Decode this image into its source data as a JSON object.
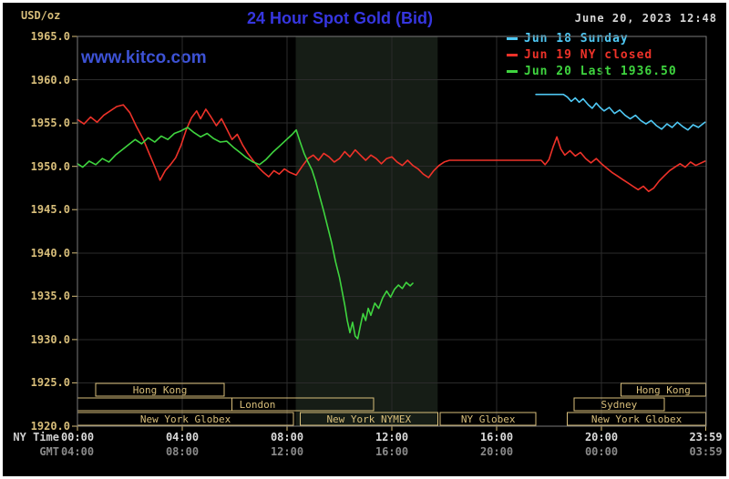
{
  "header": {
    "unit_label": "USD/oz",
    "title": "24 Hour Spot Gold (Bid)",
    "datetime": "June 20, 2023 12:48",
    "watermark": "www.kitco.com"
  },
  "axes": {
    "ny_time_label": "NY Time",
    "gmt_label": "GMT"
  },
  "colors": {
    "page_bg": "#ffffff",
    "chart_bg": "#000000",
    "tan": "#d8be7a",
    "title_blue": "#3636e0",
    "watermark_blue": "#3d52d5",
    "datetime_text": "#d8d8d8",
    "ny_tick_text": "#dcdcdc",
    "gmt_tick_text": "#8a8a8a",
    "grid": "#2b2b2b",
    "frame": "#7a7a7a",
    "band": "#161d16"
  },
  "legend": {
    "position": "top-right",
    "items": [
      {
        "label": "Jun 18 Sunday",
        "color": "#4fc8f4"
      },
      {
        "label": "Jun 19 NY closed",
        "color": "#ee3229"
      },
      {
        "label": "Jun 20 Last 1936.50",
        "color": "#3fd53f"
      }
    ]
  },
  "chart_data": {
    "type": "line",
    "title": "24 Hour Spot Gold (Bid)",
    "ylabel": "USD/oz",
    "xlabel": "NY Time / GMT",
    "ylim": [
      1920,
      1965
    ],
    "yticks": [
      1965,
      1960,
      1955,
      1950,
      1945,
      1940,
      1935,
      1930,
      1925,
      1920
    ],
    "grid": true,
    "x_hours_range": [
      0,
      24
    ],
    "x_grid_hours": [
      4,
      8,
      12,
      16,
      20
    ],
    "x_ticks": [
      {
        "hour": 0,
        "ny": "00:00",
        "gmt": "04:00"
      },
      {
        "hour": 4,
        "ny": "04:00",
        "gmt": "08:00"
      },
      {
        "hour": 8,
        "ny": "08:00",
        "gmt": "12:00"
      },
      {
        "hour": 12,
        "ny": "12:00",
        "gmt": "16:00"
      },
      {
        "hour": 16,
        "ny": "16:00",
        "gmt": "20:00"
      },
      {
        "hour": 20,
        "ny": "20:00",
        "gmt": "00:00"
      },
      {
        "hour": 23.983,
        "ny": "23:59",
        "gmt": "03:59"
      }
    ],
    "shaded_band_hours": [
      8.33,
      13.75
    ],
    "sessions": [
      {
        "row": 0,
        "start": 0.7,
        "end": 5.6,
        "label": "Hong Kong"
      },
      {
        "row": 0,
        "start": 20.75,
        "end": 23.983,
        "label": "Hong Kong"
      },
      {
        "row": 1,
        "start": 0,
        "end": 5.9,
        "label": ""
      },
      {
        "row": 1,
        "start": 5.9,
        "end": 11.3,
        "label": "London",
        "align": "left"
      },
      {
        "row": 1,
        "start": 18.95,
        "end": 22.4,
        "label": "Sydney"
      },
      {
        "row": 2,
        "start": 0,
        "end": 8.25,
        "label": "New York Globex"
      },
      {
        "row": 2,
        "start": 8.5,
        "end": 13.75,
        "label": "New York NYMEX"
      },
      {
        "row": 2,
        "start": 13.85,
        "end": 17.5,
        "label": "NY Globex"
      },
      {
        "row": 2,
        "start": 18.7,
        "end": 23.983,
        "label": "New York Globex"
      }
    ],
    "series": [
      {
        "name": "Jun 18 Sunday",
        "color": "#4fc8f4",
        "points": [
          [
            17.5,
            1958.3
          ],
          [
            18.55,
            1958.3
          ],
          [
            18.7,
            1958.0
          ],
          [
            18.85,
            1957.5
          ],
          [
            19.0,
            1957.9
          ],
          [
            19.15,
            1957.4
          ],
          [
            19.3,
            1957.8
          ],
          [
            19.5,
            1957.1
          ],
          [
            19.65,
            1956.7
          ],
          [
            19.8,
            1957.3
          ],
          [
            19.95,
            1956.8
          ],
          [
            20.1,
            1956.4
          ],
          [
            20.3,
            1956.8
          ],
          [
            20.5,
            1956.1
          ],
          [
            20.7,
            1956.5
          ],
          [
            20.9,
            1955.9
          ],
          [
            21.1,
            1955.5
          ],
          [
            21.3,
            1955.9
          ],
          [
            21.5,
            1955.3
          ],
          [
            21.7,
            1954.9
          ],
          [
            21.9,
            1955.3
          ],
          [
            22.1,
            1954.7
          ],
          [
            22.3,
            1954.3
          ],
          [
            22.5,
            1954.9
          ],
          [
            22.7,
            1954.5
          ],
          [
            22.9,
            1955.1
          ],
          [
            23.1,
            1954.6
          ],
          [
            23.3,
            1954.2
          ],
          [
            23.5,
            1954.8
          ],
          [
            23.7,
            1954.5
          ],
          [
            23.95,
            1955.1
          ]
        ]
      },
      {
        "name": "Jun 19 NY closed",
        "color": "#ee3229",
        "points": [
          [
            0.0,
            1955.4
          ],
          [
            0.25,
            1954.9
          ],
          [
            0.5,
            1955.7
          ],
          [
            0.75,
            1955.1
          ],
          [
            1.0,
            1955.9
          ],
          [
            1.25,
            1956.4
          ],
          [
            1.5,
            1956.9
          ],
          [
            1.75,
            1957.1
          ],
          [
            2.0,
            1956.2
          ],
          [
            2.25,
            1954.6
          ],
          [
            2.5,
            1953.2
          ],
          [
            2.75,
            1951.4
          ],
          [
            3.0,
            1949.6
          ],
          [
            3.15,
            1948.4
          ],
          [
            3.35,
            1949.5
          ],
          [
            3.55,
            1950.2
          ],
          [
            3.75,
            1951.0
          ],
          [
            3.95,
            1952.4
          ],
          [
            4.15,
            1954.2
          ],
          [
            4.35,
            1955.6
          ],
          [
            4.55,
            1956.4
          ],
          [
            4.7,
            1955.5
          ],
          [
            4.9,
            1956.6
          ],
          [
            5.1,
            1955.7
          ],
          [
            5.3,
            1954.7
          ],
          [
            5.5,
            1955.5
          ],
          [
            5.7,
            1954.3
          ],
          [
            5.9,
            1953.1
          ],
          [
            6.1,
            1953.7
          ],
          [
            6.3,
            1952.5
          ],
          [
            6.5,
            1951.5
          ],
          [
            6.7,
            1950.7
          ],
          [
            6.9,
            1949.9
          ],
          [
            7.1,
            1949.3
          ],
          [
            7.3,
            1948.8
          ],
          [
            7.5,
            1949.5
          ],
          [
            7.7,
            1949.1
          ],
          [
            7.9,
            1949.7
          ],
          [
            8.1,
            1949.3
          ],
          [
            8.35,
            1949.0
          ],
          [
            8.6,
            1950.1
          ],
          [
            8.8,
            1950.9
          ],
          [
            9.0,
            1951.3
          ],
          [
            9.2,
            1950.7
          ],
          [
            9.4,
            1951.5
          ],
          [
            9.6,
            1951.1
          ],
          [
            9.8,
            1950.5
          ],
          [
            10.0,
            1950.9
          ],
          [
            10.2,
            1951.7
          ],
          [
            10.4,
            1951.1
          ],
          [
            10.6,
            1951.9
          ],
          [
            10.8,
            1951.3
          ],
          [
            11.0,
            1950.7
          ],
          [
            11.2,
            1951.3
          ],
          [
            11.4,
            1950.9
          ],
          [
            11.6,
            1950.3
          ],
          [
            11.8,
            1950.9
          ],
          [
            12.0,
            1951.1
          ],
          [
            12.2,
            1950.5
          ],
          [
            12.4,
            1950.1
          ],
          [
            12.6,
            1950.7
          ],
          [
            12.8,
            1950.1
          ],
          [
            13.0,
            1949.7
          ],
          [
            13.2,
            1949.1
          ],
          [
            13.4,
            1948.7
          ],
          [
            13.6,
            1949.5
          ],
          [
            13.8,
            1950.1
          ],
          [
            14.0,
            1950.5
          ],
          [
            14.2,
            1950.7
          ],
          [
            17.7,
            1950.7
          ],
          [
            17.85,
            1950.2
          ],
          [
            18.0,
            1950.8
          ],
          [
            18.15,
            1952.2
          ],
          [
            18.3,
            1953.4
          ],
          [
            18.45,
            1952.0
          ],
          [
            18.6,
            1951.3
          ],
          [
            18.8,
            1951.8
          ],
          [
            19.0,
            1951.2
          ],
          [
            19.2,
            1951.6
          ],
          [
            19.4,
            1950.9
          ],
          [
            19.6,
            1950.4
          ],
          [
            19.8,
            1950.9
          ],
          [
            20.0,
            1950.3
          ],
          [
            20.2,
            1949.8
          ],
          [
            20.4,
            1949.3
          ],
          [
            20.6,
            1948.9
          ],
          [
            20.8,
            1948.5
          ],
          [
            21.0,
            1948.1
          ],
          [
            21.2,
            1947.7
          ],
          [
            21.4,
            1947.3
          ],
          [
            21.6,
            1947.7
          ],
          [
            21.8,
            1947.1
          ],
          [
            22.0,
            1947.5
          ],
          [
            22.2,
            1948.3
          ],
          [
            22.4,
            1948.9
          ],
          [
            22.6,
            1949.5
          ],
          [
            22.8,
            1949.9
          ],
          [
            23.0,
            1950.3
          ],
          [
            23.2,
            1949.9
          ],
          [
            23.4,
            1950.5
          ],
          [
            23.6,
            1950.1
          ],
          [
            23.95,
            1950.6
          ]
        ]
      },
      {
        "name": "Jun 20 Last 1936.50",
        "color": "#3fd53f",
        "last": 1936.5,
        "points": [
          [
            0.0,
            1950.3
          ],
          [
            0.2,
            1949.9
          ],
          [
            0.45,
            1950.6
          ],
          [
            0.7,
            1950.2
          ],
          [
            0.95,
            1950.9
          ],
          [
            1.2,
            1950.5
          ],
          [
            1.45,
            1951.3
          ],
          [
            1.7,
            1951.9
          ],
          [
            1.95,
            1952.5
          ],
          [
            2.2,
            1953.1
          ],
          [
            2.45,
            1952.6
          ],
          [
            2.7,
            1953.3
          ],
          [
            2.95,
            1952.8
          ],
          [
            3.2,
            1953.5
          ],
          [
            3.45,
            1953.1
          ],
          [
            3.7,
            1953.8
          ],
          [
            3.95,
            1954.1
          ],
          [
            4.2,
            1954.5
          ],
          [
            4.45,
            1953.9
          ],
          [
            4.7,
            1953.4
          ],
          [
            4.95,
            1953.8
          ],
          [
            5.2,
            1953.2
          ],
          [
            5.45,
            1952.8
          ],
          [
            5.7,
            1952.9
          ],
          [
            5.95,
            1952.2
          ],
          [
            6.2,
            1951.6
          ],
          [
            6.45,
            1951.0
          ],
          [
            6.7,
            1950.5
          ],
          [
            6.95,
            1950.2
          ],
          [
            7.2,
            1950.8
          ],
          [
            7.45,
            1951.6
          ],
          [
            7.7,
            1952.3
          ],
          [
            7.95,
            1953.0
          ],
          [
            8.2,
            1953.7
          ],
          [
            8.35,
            1954.2
          ],
          [
            8.5,
            1952.8
          ],
          [
            8.65,
            1951.5
          ],
          [
            8.8,
            1950.5
          ],
          [
            8.95,
            1949.6
          ],
          [
            9.1,
            1948.2
          ],
          [
            9.25,
            1946.5
          ],
          [
            9.4,
            1944.8
          ],
          [
            9.55,
            1943.0
          ],
          [
            9.7,
            1941.2
          ],
          [
            9.85,
            1939.0
          ],
          [
            10.0,
            1937.2
          ],
          [
            10.1,
            1935.6
          ],
          [
            10.2,
            1934.0
          ],
          [
            10.3,
            1932.2
          ],
          [
            10.4,
            1930.8
          ],
          [
            10.5,
            1932.0
          ],
          [
            10.6,
            1930.4
          ],
          [
            10.7,
            1930.1
          ],
          [
            10.8,
            1931.6
          ],
          [
            10.9,
            1933.0
          ],
          [
            11.0,
            1932.2
          ],
          [
            11.1,
            1933.6
          ],
          [
            11.2,
            1932.8
          ],
          [
            11.35,
            1934.2
          ],
          [
            11.5,
            1933.6
          ],
          [
            11.65,
            1934.8
          ],
          [
            11.8,
            1935.6
          ],
          [
            11.95,
            1934.9
          ],
          [
            12.1,
            1935.8
          ],
          [
            12.25,
            1936.3
          ],
          [
            12.4,
            1935.9
          ],
          [
            12.55,
            1936.6
          ],
          [
            12.7,
            1936.2
          ],
          [
            12.8,
            1936.5
          ]
        ]
      }
    ]
  }
}
